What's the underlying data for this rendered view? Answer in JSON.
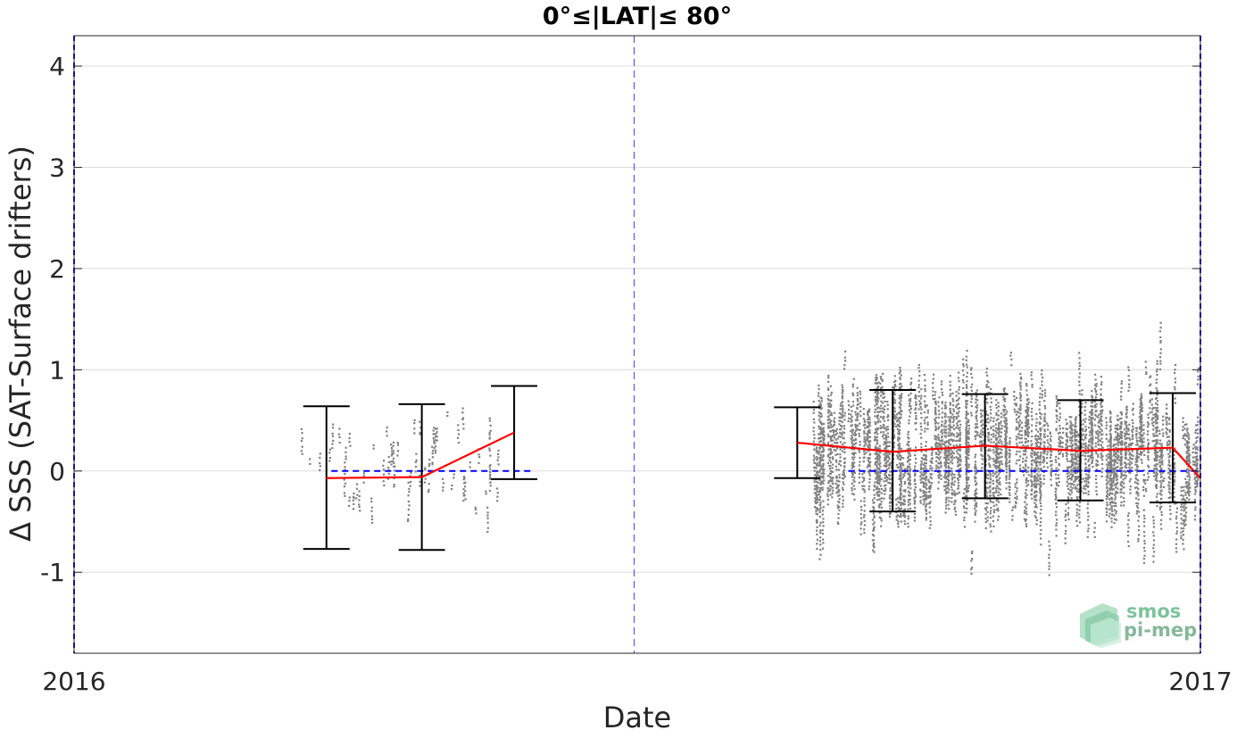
{
  "chart_data": {
    "type": "scatter",
    "title": "0°≤|LAT|≤ 80°",
    "xlabel": "Date",
    "ylabel": "Δ SSS (SAT-Surface drifters)",
    "x_range": [
      "2016-01-01",
      "2017-01-01"
    ],
    "x_tick_labels": [
      "2016",
      "2017"
    ],
    "ylim": [
      -1.8,
      4.3
    ],
    "y_ticks": [
      -1,
      0,
      1,
      2,
      3,
      4
    ],
    "y_tick_labels": [
      "-1",
      "0",
      "1",
      "2",
      "3",
      "4"
    ],
    "grid": true,
    "reference_lines": {
      "zero_line": {
        "y": 0,
        "color": "#0000ff",
        "style": "dashed"
      },
      "vertical_dates": [
        "2016-01-01",
        "2016-07-01",
        "2017-01-01"
      ],
      "vertical_color": "#0000ff"
    },
    "scatter_color": "#808080",
    "scatter_clusters": [
      {
        "start": "2016-03-13",
        "end": "2016-05-20",
        "mean": 0.1,
        "spread": 0.35
      },
      {
        "start": "2016-08-28",
        "end": "2016-12-31",
        "mean": 0.22,
        "spread": 0.5
      }
    ],
    "median_color": "#ff0000",
    "errorbar_color": "#000000",
    "monthly_stats": [
      {
        "date": "2016-03-23",
        "median": -0.07,
        "low": -0.77,
        "high": 0.64
      },
      {
        "date": "2016-04-23",
        "median": -0.06,
        "low": -0.78,
        "high": 0.66
      },
      {
        "date": "2016-05-23",
        "median": 0.38,
        "low": -0.08,
        "high": 0.84
      },
      {
        "date": "2016-08-23",
        "median": 0.28,
        "low": -0.07,
        "high": 0.63
      },
      {
        "date": "2016-09-23",
        "median": 0.19,
        "low": -0.4,
        "high": 0.8
      },
      {
        "date": "2016-10-23",
        "median": 0.25,
        "low": -0.27,
        "high": 0.76
      },
      {
        "date": "2016-11-23",
        "median": 0.2,
        "low": -0.29,
        "high": 0.7
      },
      {
        "date": "2016-12-23",
        "median": 0.23,
        "low": -0.31,
        "high": 0.77
      },
      {
        "date": "2017-01-01",
        "median": -0.07,
        "low": null,
        "high": null
      }
    ]
  },
  "logo": {
    "line1": "smos",
    "line2": "pi-mep",
    "color1": "#7cc39c",
    "color2": "#86b89a"
  }
}
